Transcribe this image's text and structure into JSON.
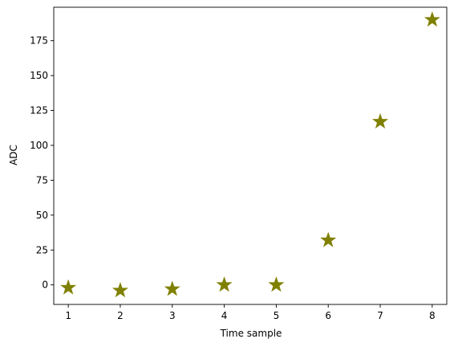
{
  "chart_data": {
    "type": "scatter",
    "title": "",
    "xlabel": "Time sample",
    "ylabel": "ADC",
    "x": [
      1,
      2,
      3,
      4,
      5,
      6,
      7,
      8
    ],
    "y": [
      -2,
      -4,
      -3,
      0,
      0,
      32,
      117,
      190
    ],
    "xlim": [
      0.72,
      8.28
    ],
    "ylim": [
      -14,
      199
    ],
    "xticks": [
      1,
      2,
      3,
      4,
      5,
      6,
      7,
      8
    ],
    "yticks": [
      0,
      25,
      50,
      75,
      100,
      125,
      150,
      175
    ],
    "marker": "star",
    "color": "#808000",
    "grid": false
  }
}
